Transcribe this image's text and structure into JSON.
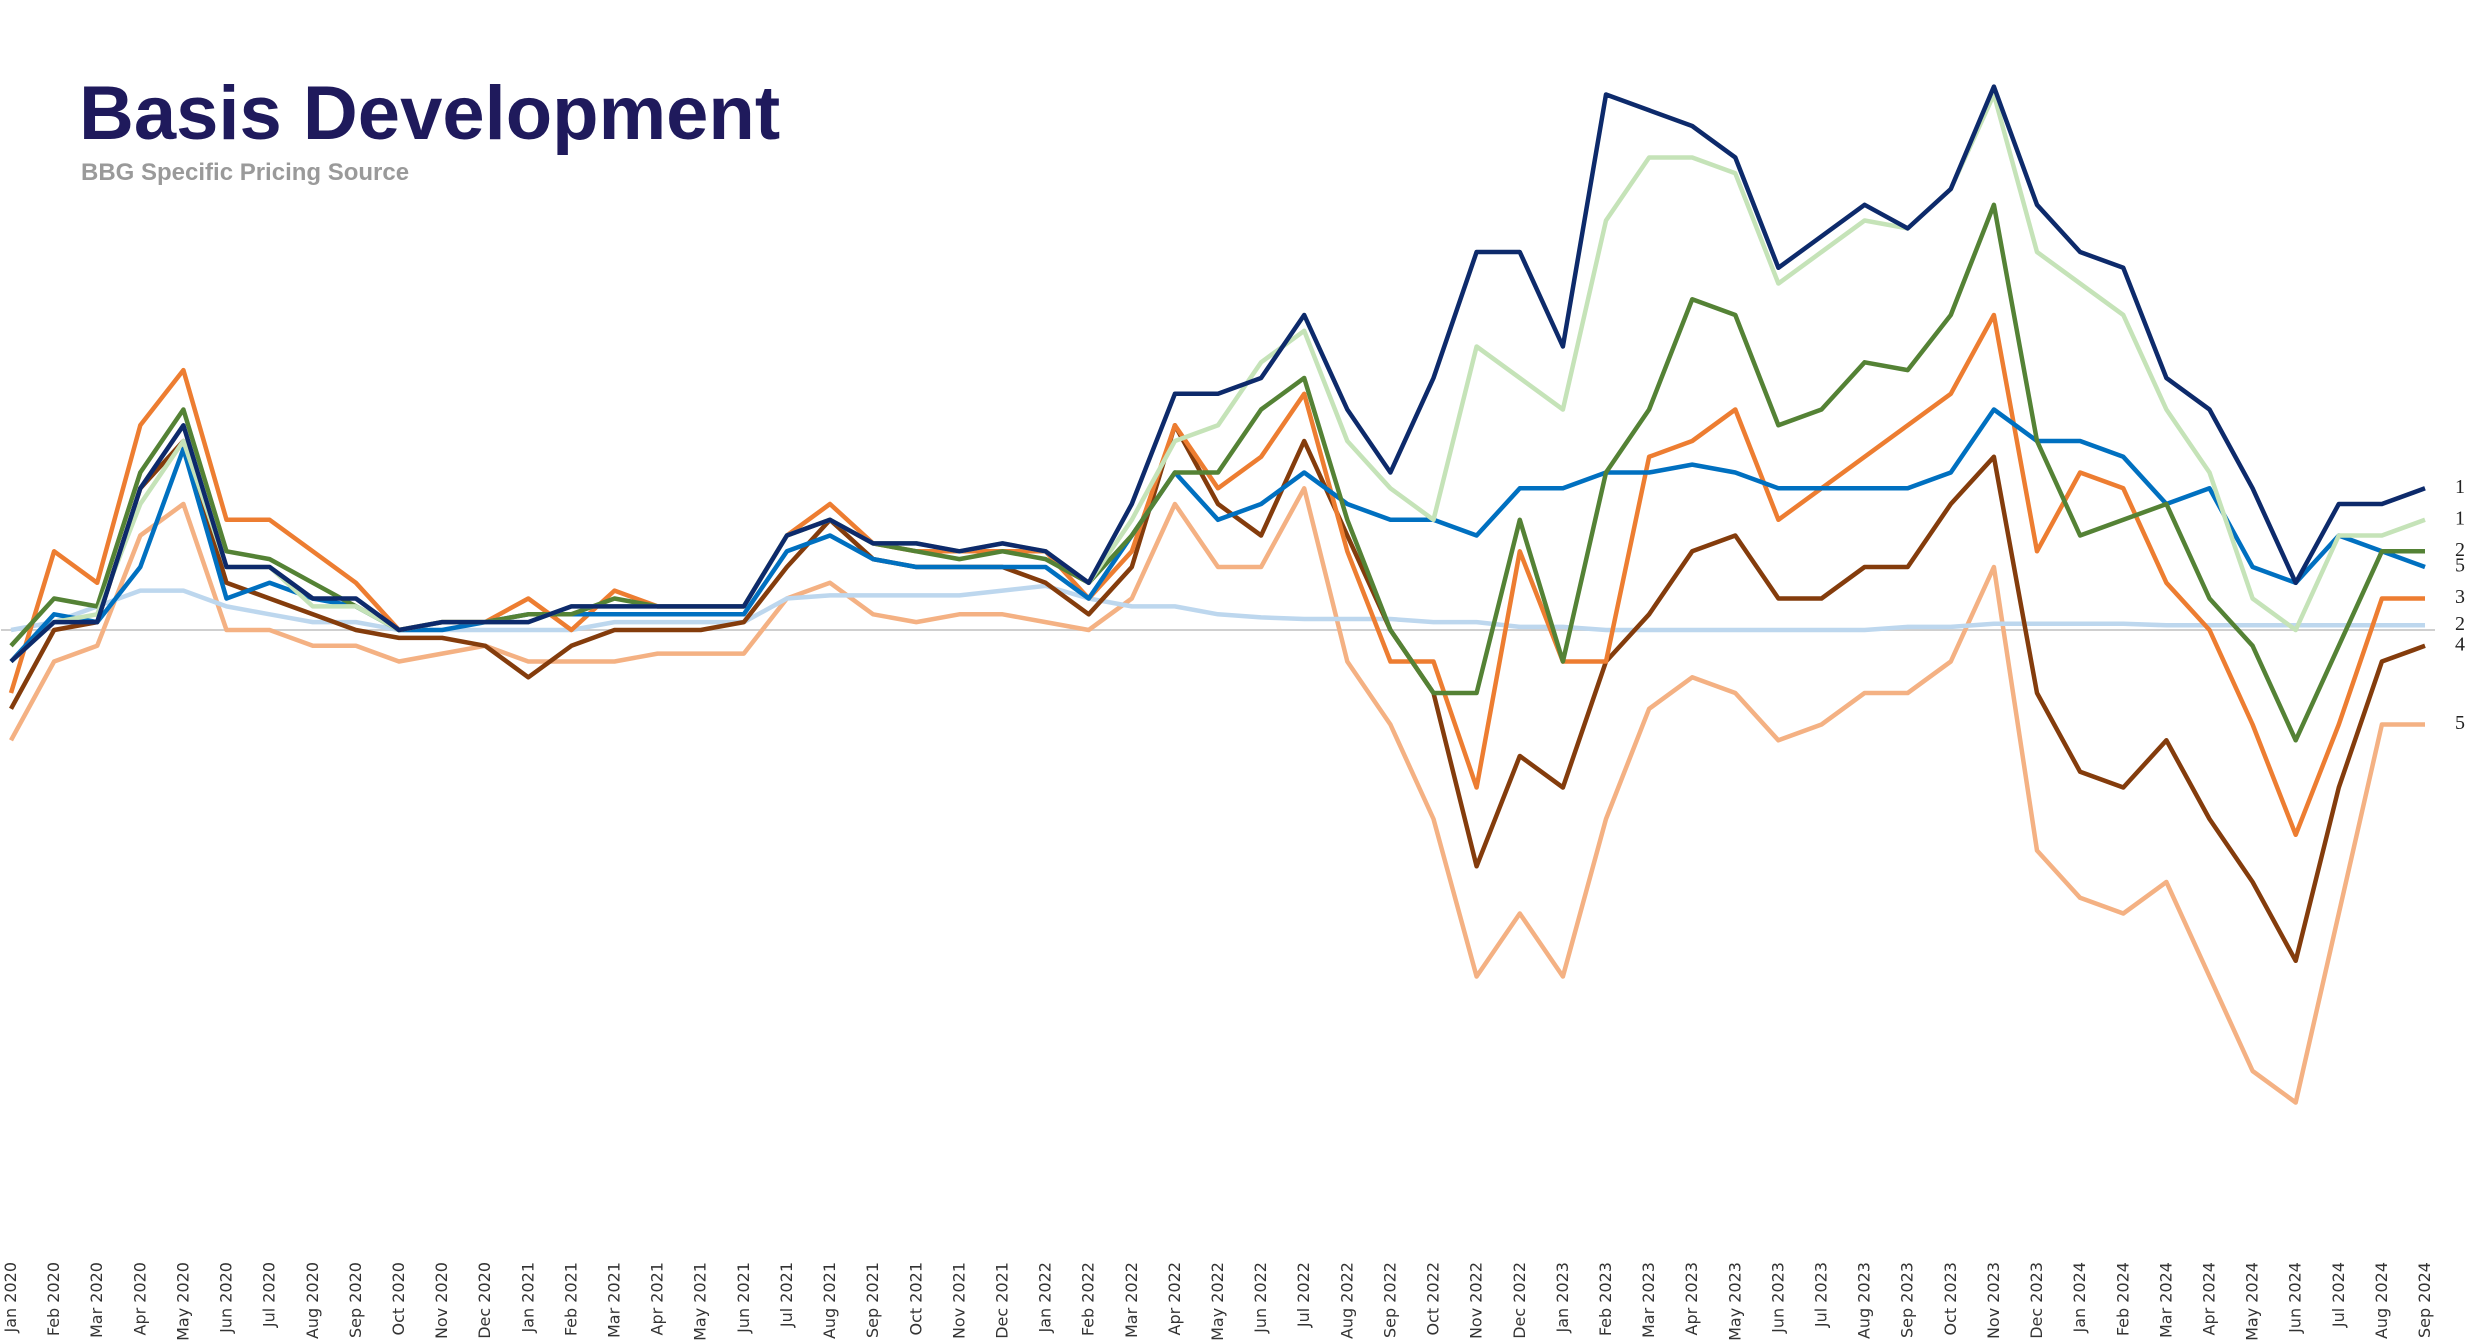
{
  "chart_data": {
    "type": "line",
    "title": "Basis Development",
    "subtitle": "BBG Specific Pricing Source",
    "categories": [
      "Jan 2020",
      "Feb 2020",
      "Mar 2020",
      "Apr 2020",
      "May 2020",
      "Jun 2020",
      "Jul 2020",
      "Aug 2020",
      "Sep 2020",
      "Oct 2020",
      "Nov 2020",
      "Dec 2020",
      "Jan 2021",
      "Feb 2021",
      "Mar 2021",
      "Apr 2021",
      "May 2021",
      "Jun 2021",
      "Jul 2021",
      "Aug 2021",
      "Sep 2021",
      "Oct 2021",
      "Nov 2021",
      "Dec 2021",
      "Jan 2022",
      "Feb 2022",
      "Mar 2022",
      "Apr 2022",
      "May 2022",
      "Jun 2022",
      "Jul 2022",
      "Aug 2022",
      "Sep 2022",
      "Oct 2022",
      "Nov 2022",
      "Dec 2022",
      "Jan 2023",
      "Feb 2023",
      "Mar 2023",
      "Apr 2023",
      "May 2023",
      "Jun 2023",
      "Jul 2023",
      "Aug 2023",
      "Sep 2023",
      "Oct 2023",
      "Nov 2023",
      "Dec 2023",
      "Jan 2024",
      "Feb 2024",
      "Mar 2024",
      "Apr 2024",
      "May 2024",
      "Jun 2024",
      "Jul 2024",
      "Aug 2024",
      "Sep 2024"
    ],
    "ylim": [
      -36,
      36
    ],
    "series": [
      {
        "name": "5",
        "color": "#f4b183",
        "values": [
          -7,
          -2,
          -1,
          6,
          8,
          0,
          0,
          -1,
          -1,
          -2,
          -1.5,
          -1,
          -2,
          -2,
          -2,
          -1.5,
          -1.5,
          -1.5,
          2,
          3,
          1,
          0.5,
          1,
          1,
          0.5,
          0,
          2,
          8,
          4,
          4,
          9,
          -2,
          -6,
          -12,
          -22,
          -18,
          -22,
          -12,
          -5,
          -3,
          -4,
          -7,
          -6,
          -4,
          -4,
          -2,
          4,
          -14,
          -17,
          -18,
          -16,
          -22,
          -28,
          -30,
          -18,
          -6,
          -6
        ]
      },
      {
        "name": "2",
        "color": "#bdd7ee",
        "values": [
          0,
          0.5,
          1.5,
          2.5,
          2.5,
          1.5,
          1,
          0.5,
          0.5,
          0,
          0,
          0,
          0,
          0,
          0.5,
          0.5,
          0.5,
          0.5,
          2,
          2.2,
          2.2,
          2.2,
          2.2,
          2.5,
          2.8,
          2,
          1.5,
          1.5,
          1,
          0.8,
          0.7,
          0.7,
          0.7,
          0.5,
          0.5,
          0.2,
          0.2,
          0,
          0,
          0,
          0,
          0,
          0,
          0,
          0.2,
          0.2,
          0.4,
          0.4,
          0.4,
          0.4,
          0.3,
          0.3,
          0.3,
          0.3,
          0.3,
          0.3,
          0.3
        ]
      },
      {
        "name": "4",
        "color": "#843c0c",
        "values": [
          -5,
          0,
          0.5,
          9,
          12,
          3,
          2,
          1,
          0,
          -0.5,
          -0.5,
          -1,
          -3,
          -1,
          0,
          0,
          0,
          0.5,
          4,
          7,
          4.5,
          4,
          4,
          4,
          3,
          1,
          4,
          13,
          8,
          6,
          12,
          6,
          0,
          -4,
          -15,
          -8,
          -10,
          -2,
          1,
          5,
          6,
          2,
          2,
          4,
          4,
          8,
          11,
          -4,
          -9,
          -10,
          -7,
          -12,
          -16,
          -21,
          -10,
          -2,
          -1
        ]
      },
      {
        "name": "3",
        "color": "#ed7d31",
        "values": [
          -4,
          5,
          3,
          13,
          16.5,
          7,
          7,
          5,
          3,
          0,
          0.5,
          0.5,
          2,
          0,
          2.5,
          1.5,
          1.5,
          1.5,
          6,
          8,
          5.5,
          5,
          5,
          5,
          5,
          2,
          5,
          13,
          9,
          11,
          15,
          5,
          -2,
          -2,
          -10,
          5,
          -2,
          -2,
          11,
          12,
          14,
          7,
          9,
          11,
          13,
          15,
          20,
          5,
          10,
          9,
          3,
          0,
          -6,
          -13,
          -6,
          2,
          2
        ]
      },
      {
        "name": "5",
        "color": "#0070c0",
        "values": [
          -2,
          1,
          0.5,
          4,
          11.5,
          2,
          3,
          2,
          1.5,
          0,
          0,
          0.5,
          1,
          1,
          1,
          1,
          1,
          1,
          5,
          6,
          4.5,
          4,
          4,
          4,
          4,
          2,
          6,
          10,
          7,
          8,
          10,
          8,
          7,
          7,
          6,
          9,
          9,
          10,
          10,
          10.5,
          10,
          9,
          9,
          9,
          9,
          10,
          14,
          12,
          12,
          11,
          8,
          9,
          4,
          3,
          6,
          5,
          4
        ]
      },
      {
        "name": "2",
        "color": "#548235",
        "values": [
          -1,
          2,
          1.5,
          10,
          14,
          5,
          4.5,
          3,
          1.5,
          0,
          0.5,
          0.5,
          1,
          1,
          2,
          1.5,
          1.5,
          1.5,
          6,
          7,
          5.5,
          5,
          4.5,
          5,
          4.5,
          3,
          6,
          10,
          10,
          14,
          16,
          7,
          0,
          -4,
          -4,
          7,
          -2,
          10,
          14,
          21,
          20,
          13,
          14,
          17,
          16.5,
          20,
          27,
          12,
          6,
          7,
          8,
          2,
          -1,
          -7,
          -1,
          5,
          5
        ]
      },
      {
        "name": "1",
        "color": "#c5e3b8",
        "values": [
          -2,
          0.5,
          1,
          8,
          12,
          4,
          4,
          1.5,
          1.5,
          0,
          0.5,
          0.5,
          0.5,
          1.5,
          1.5,
          1.5,
          1.5,
          1.5,
          6,
          7,
          5.5,
          5.5,
          5,
          5.5,
          5,
          3,
          7,
          12,
          13,
          17,
          19,
          12,
          9,
          7,
          18,
          16,
          14,
          26,
          30,
          30,
          29,
          22,
          24,
          26,
          25.5,
          28,
          34,
          24,
          22,
          20,
          14,
          10,
          2,
          0,
          6,
          6,
          7
        ]
      },
      {
        "name": "1",
        "color": "#0d2a6b",
        "values": [
          -2,
          0.5,
          0.5,
          9,
          13,
          4,
          4,
          2,
          2,
          0,
          0.5,
          0.5,
          0.5,
          1.5,
          1.5,
          1.5,
          1.5,
          1.5,
          6,
          7,
          5.5,
          5.5,
          5,
          5.5,
          5,
          3,
          8,
          15,
          15,
          16,
          20,
          14,
          10,
          16,
          24,
          24,
          18,
          34,
          33,
          32,
          30,
          23,
          25,
          27,
          25.5,
          28,
          34.5,
          27,
          24,
          23,
          16,
          14,
          9,
          3,
          8,
          8,
          9
        ]
      }
    ]
  }
}
